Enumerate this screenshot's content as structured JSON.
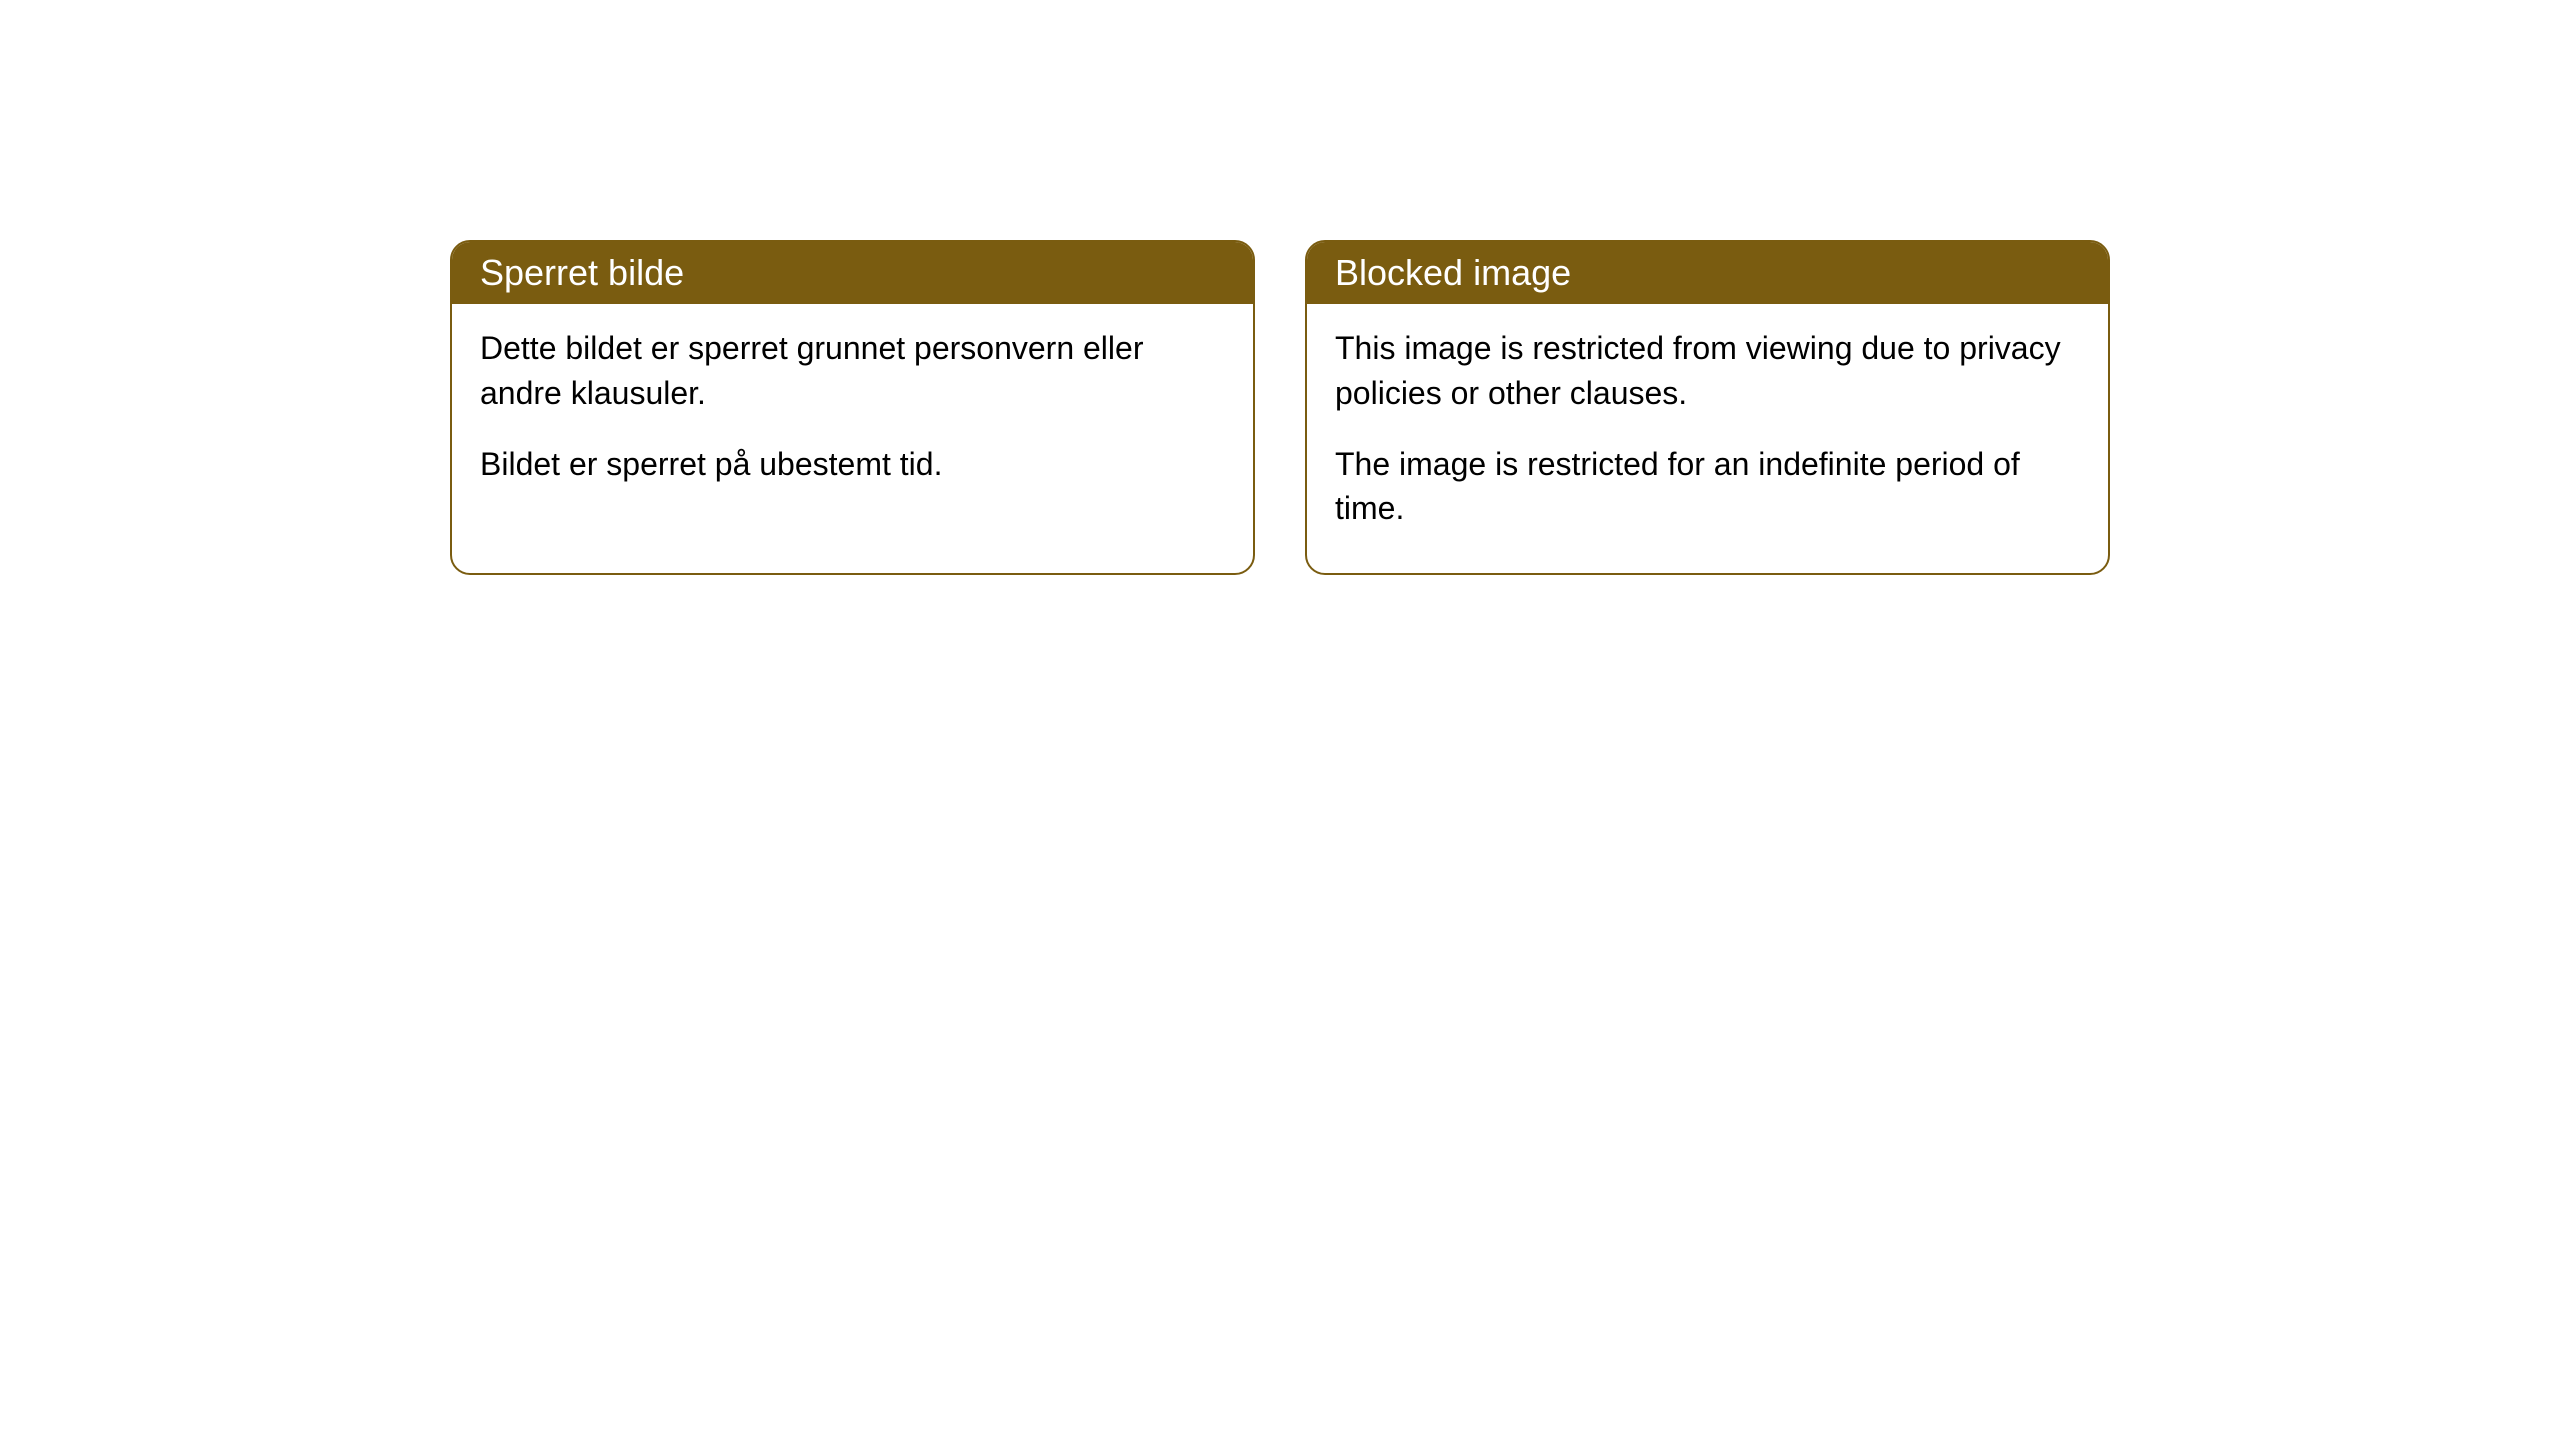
{
  "cards": [
    {
      "header": "Sperret bilde",
      "paragraph1": "Dette bildet er sperret grunnet personvern eller andre klausuler.",
      "paragraph2": "Bildet er sperret på ubestemt tid."
    },
    {
      "header": "Blocked image",
      "paragraph1": "This image is restricted from viewing due to privacy policies or other clauses.",
      "paragraph2": "The image is restricted for an indefinite period of time."
    }
  ],
  "styling": {
    "header_bg_color": "#7a5c10",
    "header_text_color": "#ffffff",
    "border_color": "#7a5c10",
    "body_bg_color": "#ffffff",
    "body_text_color": "#000000",
    "border_radius": 20,
    "header_fontsize": 36,
    "body_fontsize": 32
  }
}
